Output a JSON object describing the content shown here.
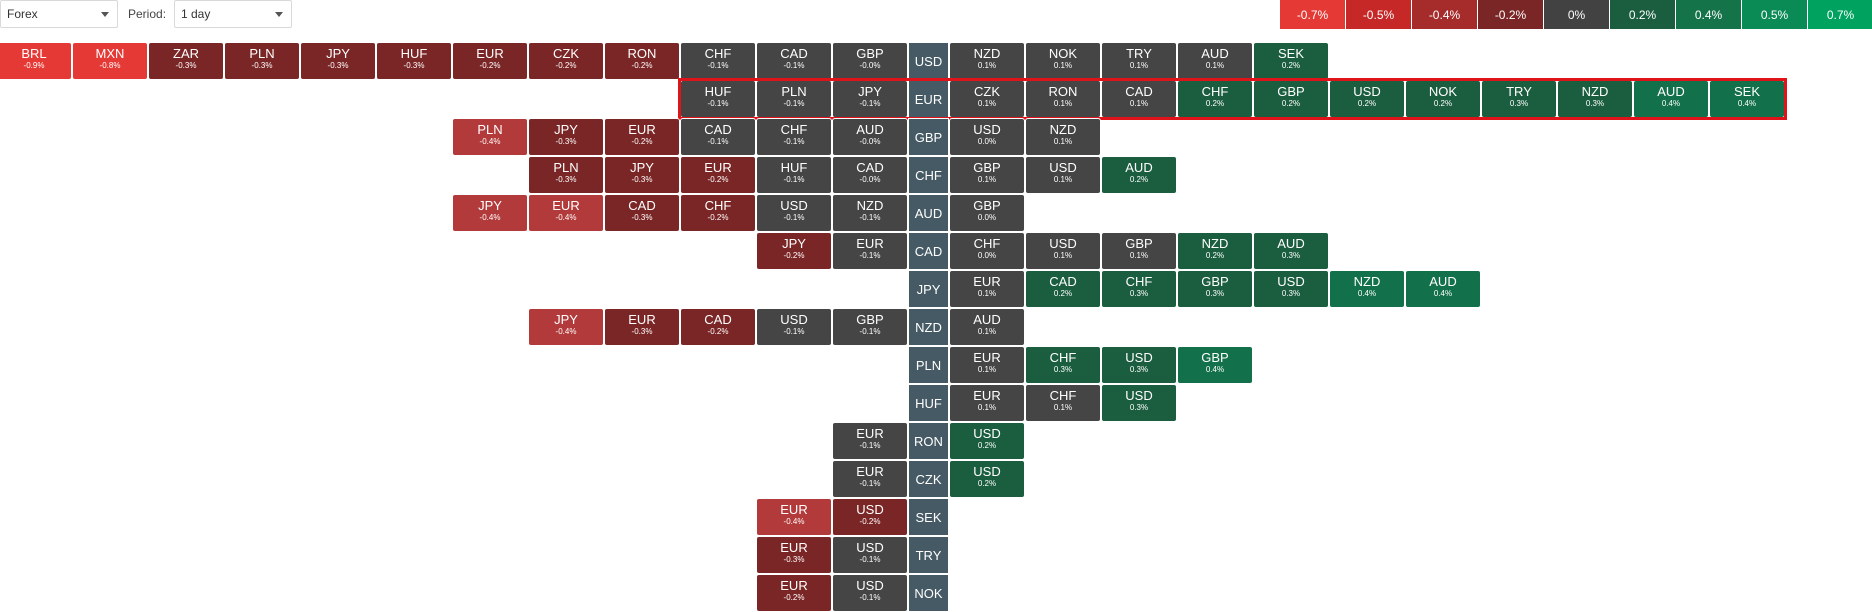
{
  "toolbar": {
    "market_value": "Forex",
    "period_label": "Period:",
    "period_value": "1 day"
  },
  "legend": [
    {
      "label": "-0.7%",
      "color": "#e53935"
    },
    {
      "label": "-0.5%",
      "color": "#c62828"
    },
    {
      "label": "-0.4%",
      "color": "#a62b2b"
    },
    {
      "label": "-0.2%",
      "color": "#7b2626"
    },
    {
      "label": "0%",
      "color": "#424242"
    },
    {
      "label": "0.2%",
      "color": "#1b5e3f"
    },
    {
      "label": "0.4%",
      "color": "#15734a"
    },
    {
      "label": "0.5%",
      "color": "#0a8a55"
    },
    {
      "label": "0.7%",
      "color": "#00a25f"
    }
  ],
  "highlighted_base": "EUR",
  "rows": [
    {
      "base": "USD",
      "left": [
        {
          "c": "BRL",
          "v": "-0.9%"
        },
        {
          "c": "MXN",
          "v": "-0.8%"
        },
        {
          "c": "ZAR",
          "v": "-0.3%"
        },
        {
          "c": "PLN",
          "v": "-0.3%"
        },
        {
          "c": "JPY",
          "v": "-0.3%"
        },
        {
          "c": "HUF",
          "v": "-0.3%"
        },
        {
          "c": "EUR",
          "v": "-0.2%"
        },
        {
          "c": "CZK",
          "v": "-0.2%"
        },
        {
          "c": "RON",
          "v": "-0.2%"
        },
        {
          "c": "CHF",
          "v": "-0.1%"
        },
        {
          "c": "CAD",
          "v": "-0.1%"
        },
        {
          "c": "GBP",
          "v": "-0.0%"
        }
      ],
      "right": [
        {
          "c": "NZD",
          "v": "0.1%"
        },
        {
          "c": "NOK",
          "v": "0.1%"
        },
        {
          "c": "TRY",
          "v": "0.1%"
        },
        {
          "c": "AUD",
          "v": "0.1%"
        },
        {
          "c": "SEK",
          "v": "0.2%"
        }
      ]
    },
    {
      "base": "EUR",
      "left": [
        {
          "c": "HUF",
          "v": "-0.1%"
        },
        {
          "c": "PLN",
          "v": "-0.1%"
        },
        {
          "c": "JPY",
          "v": "-0.1%"
        }
      ],
      "right": [
        {
          "c": "CZK",
          "v": "0.1%"
        },
        {
          "c": "RON",
          "v": "0.1%"
        },
        {
          "c": "CAD",
          "v": "0.1%"
        },
        {
          "c": "CHF",
          "v": "0.2%"
        },
        {
          "c": "GBP",
          "v": "0.2%"
        },
        {
          "c": "USD",
          "v": "0.2%"
        },
        {
          "c": "NOK",
          "v": "0.2%"
        },
        {
          "c": "TRY",
          "v": "0.3%"
        },
        {
          "c": "NZD",
          "v": "0.3%"
        },
        {
          "c": "AUD",
          "v": "0.4%"
        },
        {
          "c": "SEK",
          "v": "0.4%"
        }
      ]
    },
    {
      "base": "GBP",
      "left": [
        {
          "c": "PLN",
          "v": "-0.4%"
        },
        {
          "c": "JPY",
          "v": "-0.3%"
        },
        {
          "c": "EUR",
          "v": "-0.2%"
        },
        {
          "c": "CAD",
          "v": "-0.1%"
        },
        {
          "c": "CHF",
          "v": "-0.1%"
        },
        {
          "c": "AUD",
          "v": "-0.0%"
        }
      ],
      "right": [
        {
          "c": "USD",
          "v": "0.0%"
        },
        {
          "c": "NZD",
          "v": "0.1%"
        }
      ]
    },
    {
      "base": "CHF",
      "left": [
        {
          "c": "PLN",
          "v": "-0.3%"
        },
        {
          "c": "JPY",
          "v": "-0.3%"
        },
        {
          "c": "EUR",
          "v": "-0.2%"
        },
        {
          "c": "HUF",
          "v": "-0.1%"
        },
        {
          "c": "CAD",
          "v": "-0.0%"
        }
      ],
      "right": [
        {
          "c": "GBP",
          "v": "0.1%"
        },
        {
          "c": "USD",
          "v": "0.1%"
        },
        {
          "c": "AUD",
          "v": "0.2%"
        }
      ]
    },
    {
      "base": "AUD",
      "left": [
        {
          "c": "JPY",
          "v": "-0.4%"
        },
        {
          "c": "EUR",
          "v": "-0.4%"
        },
        {
          "c": "CAD",
          "v": "-0.3%"
        },
        {
          "c": "CHF",
          "v": "-0.2%"
        },
        {
          "c": "USD",
          "v": "-0.1%"
        },
        {
          "c": "NZD",
          "v": "-0.1%"
        }
      ],
      "right": [
        {
          "c": "GBP",
          "v": "0.0%"
        }
      ]
    },
    {
      "base": "CAD",
      "left": [
        {
          "c": "JPY",
          "v": "-0.2%"
        },
        {
          "c": "EUR",
          "v": "-0.1%"
        }
      ],
      "right": [
        {
          "c": "CHF",
          "v": "0.0%"
        },
        {
          "c": "USD",
          "v": "0.1%"
        },
        {
          "c": "GBP",
          "v": "0.1%"
        },
        {
          "c": "NZD",
          "v": "0.2%"
        },
        {
          "c": "AUD",
          "v": "0.3%"
        }
      ]
    },
    {
      "base": "JPY",
      "left": [],
      "right": [
        {
          "c": "EUR",
          "v": "0.1%"
        },
        {
          "c": "CAD",
          "v": "0.2%"
        },
        {
          "c": "CHF",
          "v": "0.3%"
        },
        {
          "c": "GBP",
          "v": "0.3%"
        },
        {
          "c": "USD",
          "v": "0.3%"
        },
        {
          "c": "NZD",
          "v": "0.4%"
        },
        {
          "c": "AUD",
          "v": "0.4%"
        }
      ]
    },
    {
      "base": "NZD",
      "left": [
        {
          "c": "JPY",
          "v": "-0.4%"
        },
        {
          "c": "EUR",
          "v": "-0.3%"
        },
        {
          "c": "CAD",
          "v": "-0.2%"
        },
        {
          "c": "USD",
          "v": "-0.1%"
        },
        {
          "c": "GBP",
          "v": "-0.1%"
        }
      ],
      "right": [
        {
          "c": "AUD",
          "v": "0.1%"
        }
      ]
    },
    {
      "base": "PLN",
      "left": [],
      "right": [
        {
          "c": "EUR",
          "v": "0.1%"
        },
        {
          "c": "CHF",
          "v": "0.3%"
        },
        {
          "c": "USD",
          "v": "0.3%"
        },
        {
          "c": "GBP",
          "v": "0.4%"
        }
      ]
    },
    {
      "base": "HUF",
      "left": [],
      "right": [
        {
          "c": "EUR",
          "v": "0.1%"
        },
        {
          "c": "CHF",
          "v": "0.1%"
        },
        {
          "c": "USD",
          "v": "0.3%"
        }
      ]
    },
    {
      "base": "RON",
      "left": [
        {
          "c": "EUR",
          "v": "-0.1%"
        }
      ],
      "right": [
        {
          "c": "USD",
          "v": "0.2%"
        }
      ]
    },
    {
      "base": "CZK",
      "left": [
        {
          "c": "EUR",
          "v": "-0.1%"
        }
      ],
      "right": [
        {
          "c": "USD",
          "v": "0.2%"
        }
      ]
    },
    {
      "base": "SEK",
      "left": [
        {
          "c": "EUR",
          "v": "-0.4%"
        },
        {
          "c": "USD",
          "v": "-0.2%"
        }
      ],
      "right": []
    },
    {
      "base": "TRY",
      "left": [
        {
          "c": "EUR",
          "v": "-0.3%"
        },
        {
          "c": "USD",
          "v": "-0.1%"
        }
      ],
      "right": []
    },
    {
      "base": "NOK",
      "left": [
        {
          "c": "EUR",
          "v": "-0.2%"
        },
        {
          "c": "USD",
          "v": "-0.1%"
        }
      ],
      "right": []
    }
  ]
}
